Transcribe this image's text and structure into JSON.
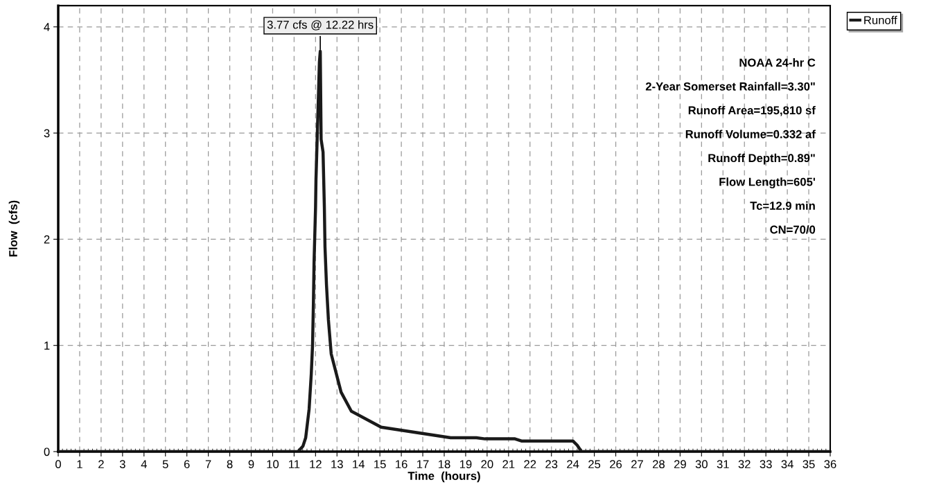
{
  "chart_data": {
    "type": "line",
    "xlabel": "Time  (hours)",
    "ylabel": "Flow  (cfs)",
    "xlim": [
      0,
      36
    ],
    "xticks": [
      0,
      1,
      2,
      3,
      4,
      5,
      6,
      7,
      8,
      9,
      10,
      11,
      12,
      13,
      14,
      15,
      16,
      17,
      18,
      19,
      20,
      21,
      22,
      23,
      24,
      25,
      26,
      27,
      28,
      29,
      30,
      31,
      32,
      33,
      34,
      35,
      36
    ],
    "ylim": [
      0,
      4.2
    ],
    "yticks": [
      0,
      1,
      2,
      3,
      4
    ],
    "grid": true,
    "legend": "top right",
    "line_style": "solid",
    "marker": "none",
    "series": [
      {
        "name": "Runoff",
        "color": "#1a1a1a",
        "x": [
          0,
          11.18,
          11.41,
          11.54,
          11.7,
          11.8,
          11.86,
          11.9,
          11.93,
          12.0,
          12.02,
          12.18,
          12.22,
          12.26,
          12.35,
          12.41,
          12.44,
          12.51,
          12.6,
          12.73,
          13.19,
          13.67,
          15.06,
          18.3,
          19.5,
          19.9,
          21.3,
          21.6,
          23.0,
          24.0,
          24.2,
          24.4,
          36
        ],
        "values": [
          0,
          0,
          0.05,
          0.13,
          0.4,
          0.73,
          1.0,
          1.4,
          1.78,
          2.3,
          2.56,
          3.67,
          3.77,
          2.94,
          2.82,
          2.31,
          1.93,
          1.57,
          1.24,
          0.92,
          0.56,
          0.38,
          0.23,
          0.13,
          0.13,
          0.12,
          0.12,
          0.1,
          0.1,
          0.1,
          0.06,
          0,
          0
        ]
      }
    ],
    "annotations": [
      {
        "text": "3.77 cfs @ 12.22 hrs",
        "x": 12.22,
        "y": 3.77
      },
      "NOAA 24-hr C",
      "2-Year Somerset Rainfall=3.30\"",
      "Runoff Area=195,810 sf",
      "Runoff Volume=0.332 af",
      "Runoff Depth=0.89\"",
      "Flow Length=605'",
      "Tc=12.9 min",
      "CN=70/0"
    ]
  }
}
